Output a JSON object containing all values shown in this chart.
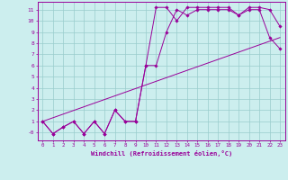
{
  "xlabel": "Windchill (Refroidissement éolien,°C)",
  "background_color": "#cceeee",
  "line_color": "#990099",
  "grid_color": "#99cccc",
  "xlim": [
    -0.5,
    23.5
  ],
  "ylim": [
    -0.7,
    11.7
  ],
  "xticks": [
    0,
    1,
    2,
    3,
    4,
    5,
    6,
    7,
    8,
    9,
    10,
    11,
    12,
    13,
    14,
    15,
    16,
    17,
    18,
    19,
    20,
    21,
    22,
    23
  ],
  "yticks": [
    0,
    1,
    2,
    3,
    4,
    5,
    6,
    7,
    8,
    9,
    10,
    11
  ],
  "ytick_labels": [
    "-0",
    "1",
    "2",
    "3",
    "4",
    "5",
    "6",
    "7",
    "8",
    "9",
    "10",
    "11"
  ],
  "line1_x": [
    0,
    1,
    2,
    3,
    4,
    5,
    6,
    7,
    8,
    9,
    10,
    11,
    12,
    13,
    14,
    15,
    16,
    17,
    18,
    19,
    20,
    21,
    22,
    23
  ],
  "line1_y": [
    1.0,
    -0.1,
    0.5,
    1.0,
    -0.1,
    1.0,
    -0.1,
    2.0,
    1.0,
    1.0,
    6.0,
    11.2,
    11.2,
    10.0,
    11.2,
    11.2,
    11.2,
    11.2,
    11.2,
    10.5,
    11.2,
    11.2,
    11.0,
    9.5
  ],
  "line2_x": [
    0,
    1,
    2,
    3,
    4,
    5,
    6,
    7,
    8,
    9,
    10,
    11,
    12,
    13,
    14,
    15,
    16,
    17,
    18,
    19,
    20,
    21,
    22,
    23
  ],
  "line2_y": [
    1.0,
    -0.1,
    0.5,
    1.0,
    -0.1,
    1.0,
    -0.1,
    2.0,
    1.0,
    1.0,
    6.0,
    6.0,
    9.0,
    11.0,
    10.5,
    11.0,
    11.0,
    11.0,
    11.0,
    10.5,
    11.0,
    11.0,
    8.5,
    7.5
  ],
  "line3_x": [
    0,
    23
  ],
  "line3_y": [
    1.0,
    8.5
  ]
}
